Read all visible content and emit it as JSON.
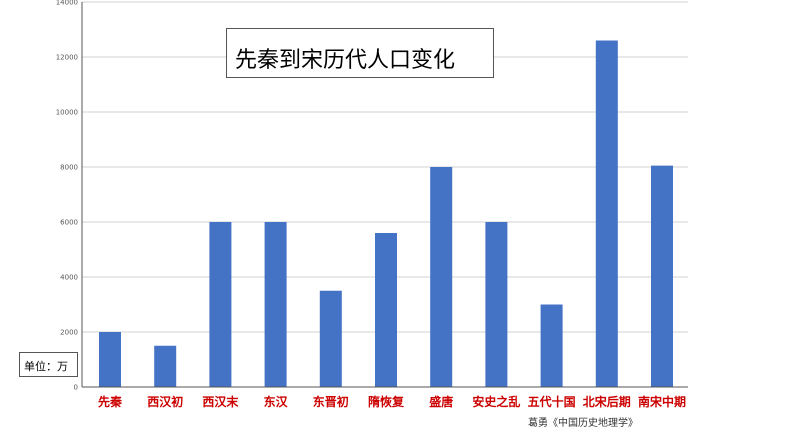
{
  "chart_data": {
    "type": "bar",
    "title": "先秦到宋历代人口变化",
    "unit_label": "单位：万",
    "source": "葛勇《中国历史地理学》",
    "categories": [
      "先秦",
      "西汉初",
      "西汉末",
      "东汉",
      "东晋初",
      "隋恢复",
      "盛唐",
      "安史之乱",
      "五代十国",
      "北宋后期",
      "南宋中期"
    ],
    "values": [
      2000,
      1500,
      6000,
      6000,
      3500,
      5600,
      8000,
      6000,
      3000,
      12600,
      8050
    ],
    "ylim": [
      0,
      14000
    ],
    "yticks": [
      "0",
      "2000",
      "4000",
      "6000",
      "8000",
      "10000",
      "12000",
      "14000"
    ],
    "grid": true,
    "colors": {
      "bar": "#4472c4",
      "category_label": "#cc0000",
      "grid": "#d0d0d0",
      "axis": "#555555"
    }
  }
}
